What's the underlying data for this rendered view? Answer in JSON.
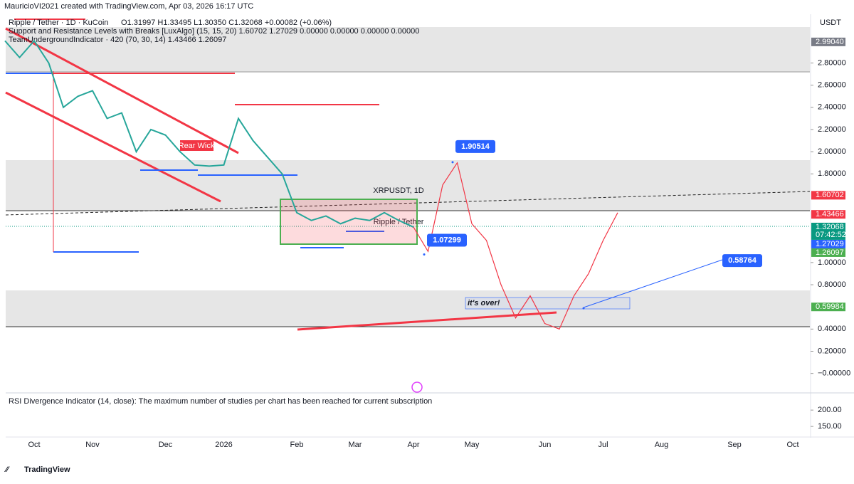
{
  "header": {
    "credit": "MauricioVI2021 created with TradingView.com, Apr 03, 2026 16:17 UTC"
  },
  "legend": {
    "symbol": "Ripple / Tether · 1D · KuCoin",
    "ohlc": "O1.31997 H1.33495 L1.30350 C1.32068 +0.00082 (+0.06%)",
    "indicator_sr": "Support and Resistance Levels with Breaks [LuxAlgo] (15, 15, 20) 1.60702 1.27029 0.00000 0.00000 0.00000 0.00000",
    "indicator_tu": "TeamUndergroundIndicator · 420 (70, 30, 14) 1.43466 1.26097"
  },
  "watermark": {
    "ticker": "XRPUSDT, 1D",
    "name": "Ripple / Tether"
  },
  "currency": "USDT",
  "chart_data": {
    "type": "line",
    "categories": [
      null,
      null,
      "Oct",
      null,
      null,
      null,
      "Nov",
      null,
      null,
      null,
      null,
      "Dec",
      null,
      null,
      null,
      "2026",
      null,
      null,
      null,
      null,
      "Feb",
      null,
      null,
      null,
      "Mar",
      null,
      null,
      null,
      "Apr",
      null,
      null,
      null,
      "May",
      null,
      null,
      null,
      null,
      "Jun",
      null,
      null,
      null,
      "Jul",
      null,
      null,
      null,
      "Aug",
      null,
      null,
      null,
      null,
      "Sep",
      null,
      null,
      null,
      "Oct"
    ],
    "series": [
      {
        "name": "Ripple / Tether",
        "color": "#26a69a",
        "values": [
          3.0,
          2.85,
          3.0,
          2.8,
          2.4,
          2.5,
          2.55,
          2.3,
          2.35,
          2.0,
          2.2,
          2.15,
          2.0,
          1.88,
          1.87,
          1.88,
          2.3,
          2.1,
          1.95,
          1.8,
          1.45,
          1.38,
          1.42,
          1.35,
          1.4,
          1.38,
          1.45,
          1.38,
          1.32,
          null,
          null,
          null,
          null,
          null,
          null,
          null,
          null,
          null,
          null,
          null,
          null,
          null,
          null,
          null,
          null,
          null,
          null,
          null,
          null,
          null,
          null,
          null,
          null,
          null,
          null
        ]
      },
      {
        "color": "#f23645",
        "values": [
          null,
          null,
          null,
          null,
          null,
          null,
          null,
          null,
          null,
          null,
          null,
          null,
          null,
          null,
          null,
          null,
          null,
          null,
          null,
          null,
          null,
          null,
          null,
          null,
          null,
          null,
          null,
          null,
          1.32,
          1.1,
          1.7,
          1.9,
          1.35,
          1.2,
          0.8,
          0.5,
          0.7,
          0.45,
          0.4,
          0.7,
          0.9,
          1.2,
          1.45,
          null,
          null,
          null,
          null,
          null,
          null,
          null,
          null,
          null,
          null,
          null,
          null
        ]
      }
    ],
    "ylim": [
      -0.15,
      3.24
    ],
    "yticks": [
      {
        "value": 2.8,
        "label": "2.80000"
      },
      {
        "value": 2.6,
        "label": "2.60000"
      },
      {
        "value": 2.4,
        "label": "2.40000"
      },
      {
        "value": 2.2,
        "label": "2.20000"
      },
      {
        "value": 2.0,
        "label": "2.00000"
      },
      {
        "value": 1.8,
        "label": "1.80000"
      },
      {
        "value": 1.0,
        "label": "1.00000"
      },
      {
        "value": 0.8,
        "label": "0.80000"
      },
      {
        "value": 0.4,
        "label": "0.40000"
      },
      {
        "value": 0.2,
        "label": "0.20000"
      },
      {
        "value": 0,
        "label": "−0.00000"
      }
    ],
    "price_labels": [
      {
        "value": 2.9904,
        "label": "2.99040",
        "color": "#787b86"
      },
      {
        "value": 1.60702,
        "label": "1.60702",
        "color": "#f23645"
      },
      {
        "value": 1.43466,
        "label": "1.43466",
        "color": "#f23645"
      },
      {
        "value": 1.32068,
        "label": "1.32068",
        "color": "#089981"
      },
      {
        "value": 1.27029,
        "label": "1.27029",
        "color": "#2962ff"
      },
      {
        "value": 1.26097,
        "label": "1.26097",
        "color": "#4caf50"
      },
      {
        "value": 0.59984,
        "label": "0.59984",
        "color": "#4caf50"
      }
    ],
    "countdown": "07:42:52",
    "annotations": [
      {
        "value": 1.90514,
        "label": "1.90514"
      },
      {
        "value": 1.07299,
        "label": "1.07299"
      },
      {
        "value": 0.58764,
        "label": "0.58764"
      }
    ],
    "notes": [
      "it's over!",
      "Rear Wick"
    ]
  },
  "rsi": {
    "text": "RSI Divergence Indicator (14, close): The maximum number of studies per chart has been reached for current subscription",
    "ylim": [
      122,
      246
    ],
    "yticks": [
      {
        "value": 200,
        "label": "200.00"
      },
      {
        "value": 150,
        "label": "150.00"
      }
    ]
  },
  "footer": {
    "brand": "TradingView"
  }
}
